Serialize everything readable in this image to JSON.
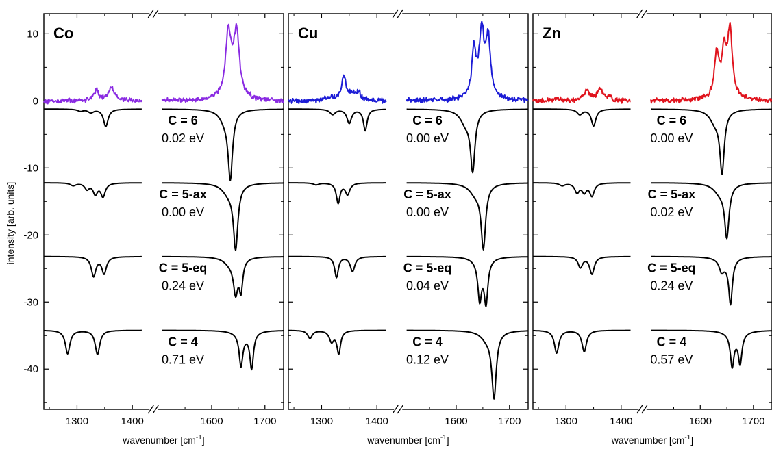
{
  "chart_data": {
    "type": "line",
    "ylabel": "intensity [arb. units]",
    "ylim": [
      -46,
      13
    ],
    "yticks": [
      10,
      0,
      -10,
      -20,
      -30,
      -40
    ],
    "x_segments": [
      [
        1240,
        1425
      ],
      [
        1505,
        1735
      ]
    ],
    "xticks": [
      1300,
      1400,
      1600,
      1700
    ],
    "xlabel_main": "wavenumber [cm",
    "xlabel_sup": "-1",
    "xlabel_end": "]",
    "panels": [
      {
        "label": "Co",
        "color": "#8a2be2",
        "experiment": {
          "offset": 0,
          "peaks": [
            [
              1335,
              1.5,
              5
            ],
            [
              1362,
              1.9,
              7
            ],
            [
              1631,
              8.6,
              6
            ],
            [
              1647,
              8.2,
              6
            ],
            [
              1640,
              2.5,
              12
            ]
          ]
        },
        "computed": [
          {
            "name": "C = 6",
            "energy": "0.02 eV",
            "offset": -1.2,
            "peaks": [
              [
                1306,
                -0.3,
                6
              ],
              [
                1325,
                -0.5,
                6
              ],
              [
                1352,
                -2.6,
                5
              ],
              [
                1635,
                -9.8,
                5
              ],
              [
                1625,
                -1.5,
                12
              ]
            ]
          },
          {
            "name": "C = 5-ax",
            "energy": "0.00 eV",
            "offset": -12.2,
            "peaks": [
              [
                1293,
                -0.4,
                6
              ],
              [
                1318,
                -0.9,
                5
              ],
              [
                1333,
                -1.6,
                5
              ],
              [
                1347,
                -2.0,
                5
              ],
              [
                1645,
                -9.3,
                5
              ],
              [
                1632,
                -1.5,
                14
              ]
            ]
          },
          {
            "name": "C = 5-eq",
            "energy": "0.24 eV",
            "offset": -23.2,
            "peaks": [
              [
                1330,
                -2.9,
                5
              ],
              [
                1349,
                -2.5,
                5
              ],
              [
                1645,
                -4.8,
                5
              ],
              [
                1655,
                -4.5,
                4
              ],
              [
                1635,
                -1.0,
                14
              ]
            ]
          },
          {
            "name": "C = 4",
            "energy": "0.71 eV",
            "offset": -34.2,
            "peaks": [
              [
                1283,
                -3.5,
                5
              ],
              [
                1337,
                -3.6,
                5
              ],
              [
                1655,
                -4.6,
                4
              ],
              [
                1675,
                -5.3,
                4
              ],
              [
                1660,
                -0.8,
                16
              ]
            ]
          }
        ]
      },
      {
        "label": "Cu",
        "color": "#1c1cd6",
        "experiment": {
          "offset": 0,
          "peaks": [
            [
              1316,
              0.6,
              6
            ],
            [
              1340,
              3.6,
              5
            ],
            [
              1355,
              1.0,
              5
            ],
            [
              1367,
              1.2,
              5
            ],
            [
              1633,
              6.4,
              4
            ],
            [
              1648,
              7.8,
              5
            ],
            [
              1660,
              8.2,
              5
            ],
            [
              1645,
              2.5,
              14
            ]
          ]
        },
        "computed": [
          {
            "name": "C = 6",
            "energy": "0.00 eV",
            "offset": -1.2,
            "peaks": [
              [
                1320,
                -0.8,
                6
              ],
              [
                1350,
                -2.1,
                5
              ],
              [
                1379,
                -3.2,
                4
              ],
              [
                1631,
                -8.6,
                5
              ],
              [
                1618,
                -2.0,
                12
              ]
            ]
          },
          {
            "name": "C = 5-ax",
            "energy": "0.00 eV",
            "offset": -12.2,
            "peaks": [
              [
                1290,
                -0.3,
                6
              ],
              [
                1330,
                -3.0,
                4
              ],
              [
                1347,
                -1.7,
                5
              ],
              [
                1651,
                -9.2,
                5
              ],
              [
                1637,
                -1.6,
                14
              ]
            ]
          },
          {
            "name": "C = 5-eq",
            "energy": "0.04 eV",
            "offset": -23.2,
            "peaks": [
              [
                1327,
                -3.1,
                4
              ],
              [
                1356,
                -2.2,
                5
              ],
              [
                1644,
                -5.2,
                4
              ],
              [
                1656,
                -6.0,
                4
              ],
              [
                1648,
                -1.4,
                12
              ]
            ]
          },
          {
            "name": "C = 4",
            "energy": "0.12 eV",
            "offset": -34.2,
            "peaks": [
              [
                1279,
                -1.2,
                5
              ],
              [
                1318,
                -1.6,
                5
              ],
              [
                1331,
                -3.4,
                4
              ],
              [
                1671,
                -9.6,
                5
              ],
              [
                1658,
                -1.2,
                14
              ]
            ]
          }
        ]
      },
      {
        "label": "Zn",
        "color": "#e0141e",
        "experiment": {
          "offset": 0,
          "peaks": [
            [
              1283,
              0.3,
              6
            ],
            [
              1338,
              1.6,
              6
            ],
            [
              1362,
              1.8,
              6
            ],
            [
              1380,
              0.5,
              5
            ],
            [
              1631,
              6.2,
              5
            ],
            [
              1645,
              5.5,
              5
            ],
            [
              1656,
              9.5,
              5
            ],
            [
              1645,
              1.5,
              14
            ]
          ]
        },
        "computed": [
          {
            "name": "C = 6",
            "energy": "0.00 eV",
            "offset": -1.2,
            "peaks": [
              [
                1325,
                -0.8,
                6
              ],
              [
                1350,
                -2.5,
                5
              ],
              [
                1641,
                -8.9,
                5
              ],
              [
                1628,
                -1.8,
                12
              ]
            ]
          },
          {
            "name": "C = 5-ax",
            "energy": "0.02 eV",
            "offset": -12.2,
            "peaks": [
              [
                1293,
                -0.4,
                6
              ],
              [
                1320,
                -1.4,
                5
              ],
              [
                1333,
                -1.3,
                5
              ],
              [
                1347,
                -1.9,
                5
              ],
              [
                1650,
                -7.6,
                5
              ],
              [
                1637,
                -1.4,
                14
              ]
            ]
          },
          {
            "name": "C = 5-eq",
            "energy": "0.24 eV",
            "offset": -23.2,
            "peaks": [
              [
                1326,
                -1.6,
                5
              ],
              [
                1347,
                -2.6,
                5
              ],
              [
                1640,
                -1.5,
                5
              ],
              [
                1657,
                -6.4,
                4
              ],
              [
                1648,
                -1.0,
                14
              ]
            ]
          },
          {
            "name": "C = 4",
            "energy": "0.57 eV",
            "offset": -34.2,
            "peaks": [
              [
                1283,
                -3.4,
                5
              ],
              [
                1333,
                -3.2,
                5
              ],
              [
                1660,
                -4.6,
                4
              ],
              [
                1675,
                -4.3,
                4
              ],
              [
                1666,
                -0.9,
                16
              ]
            ]
          }
        ]
      }
    ]
  }
}
